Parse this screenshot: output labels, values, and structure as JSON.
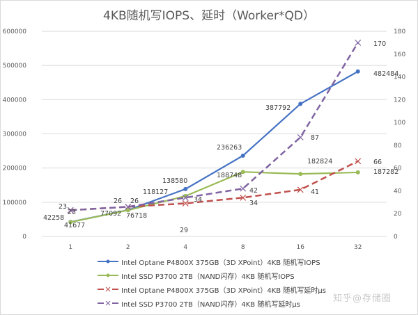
{
  "chart_data": {
    "type": "line",
    "title": "4KB随机写IOPS、延时（Worker*QD）",
    "xlabel": "",
    "ylabel": "",
    "categories": [
      "1",
      "2",
      "4",
      "8",
      "16",
      "32"
    ],
    "y_left": {
      "range": [
        0,
        600000
      ],
      "ticks": [
        "0",
        "100000",
        "200000",
        "300000",
        "400000",
        "500000",
        "600000"
      ]
    },
    "y_right": {
      "range": [
        0,
        180
      ],
      "ticks": [
        "0",
        "20",
        "40",
        "60",
        "80",
        "100",
        "120",
        "140",
        "160",
        "180"
      ]
    },
    "grid": true,
    "legend_position": "bottom",
    "series": [
      {
        "name": "Intel Optane P4800X 375GB（3D XPoint）4KB 随机写IOPS",
        "axis": "left",
        "color": "#4472c4",
        "style": "solid",
        "marker": "circle",
        "values": [
          42258,
          77092,
          138580,
          236263,
          387792,
          482484
        ]
      },
      {
        "name": "Intel SSD P3700 2TB（NAND闪存）4KB 随机写IOPS",
        "axis": "left",
        "color": "#9bbb59",
        "style": "solid",
        "marker": "circle",
        "values": [
          41677,
          76718,
          118127,
          188748,
          182824,
          187282
        ]
      },
      {
        "name": "Intel Optane P4800X 375GB（3D XPoint）4KB 随机写延时µs",
        "axis": "right",
        "color": "#c0504d",
        "style": "dashed",
        "marker": "x",
        "values": [
          23,
          26,
          29,
          34,
          41,
          66
        ]
      },
      {
        "name": "Intel SSD P3700 2TB（NAND闪存）4KB 随机写延时µs",
        "axis": "right",
        "color": "#8064a2",
        "style": "dashed",
        "marker": "x",
        "values": [
          23,
          26,
          34,
          42,
          87,
          170
        ]
      }
    ]
  },
  "labels": {
    "title": "4KB随机写IOPS、延时（Worker*QD）",
    "watermark": "知乎@存储圈"
  },
  "legend": [
    {
      "label": "Intel Optane P4800X 375GB（3D XPoint）4KB 随机写IOPS"
    },
    {
      "label": "Intel SSD P3700 2TB（NAND闪存）4KB 随机写IOPS"
    },
    {
      "label": "Intel Optane P4800X 375GB（3D XPoint）4KB 随机写延时µs"
    },
    {
      "label": "Intel SSD P3700 2TB（NAND闪存）4KB 随机写延时µs"
    }
  ]
}
